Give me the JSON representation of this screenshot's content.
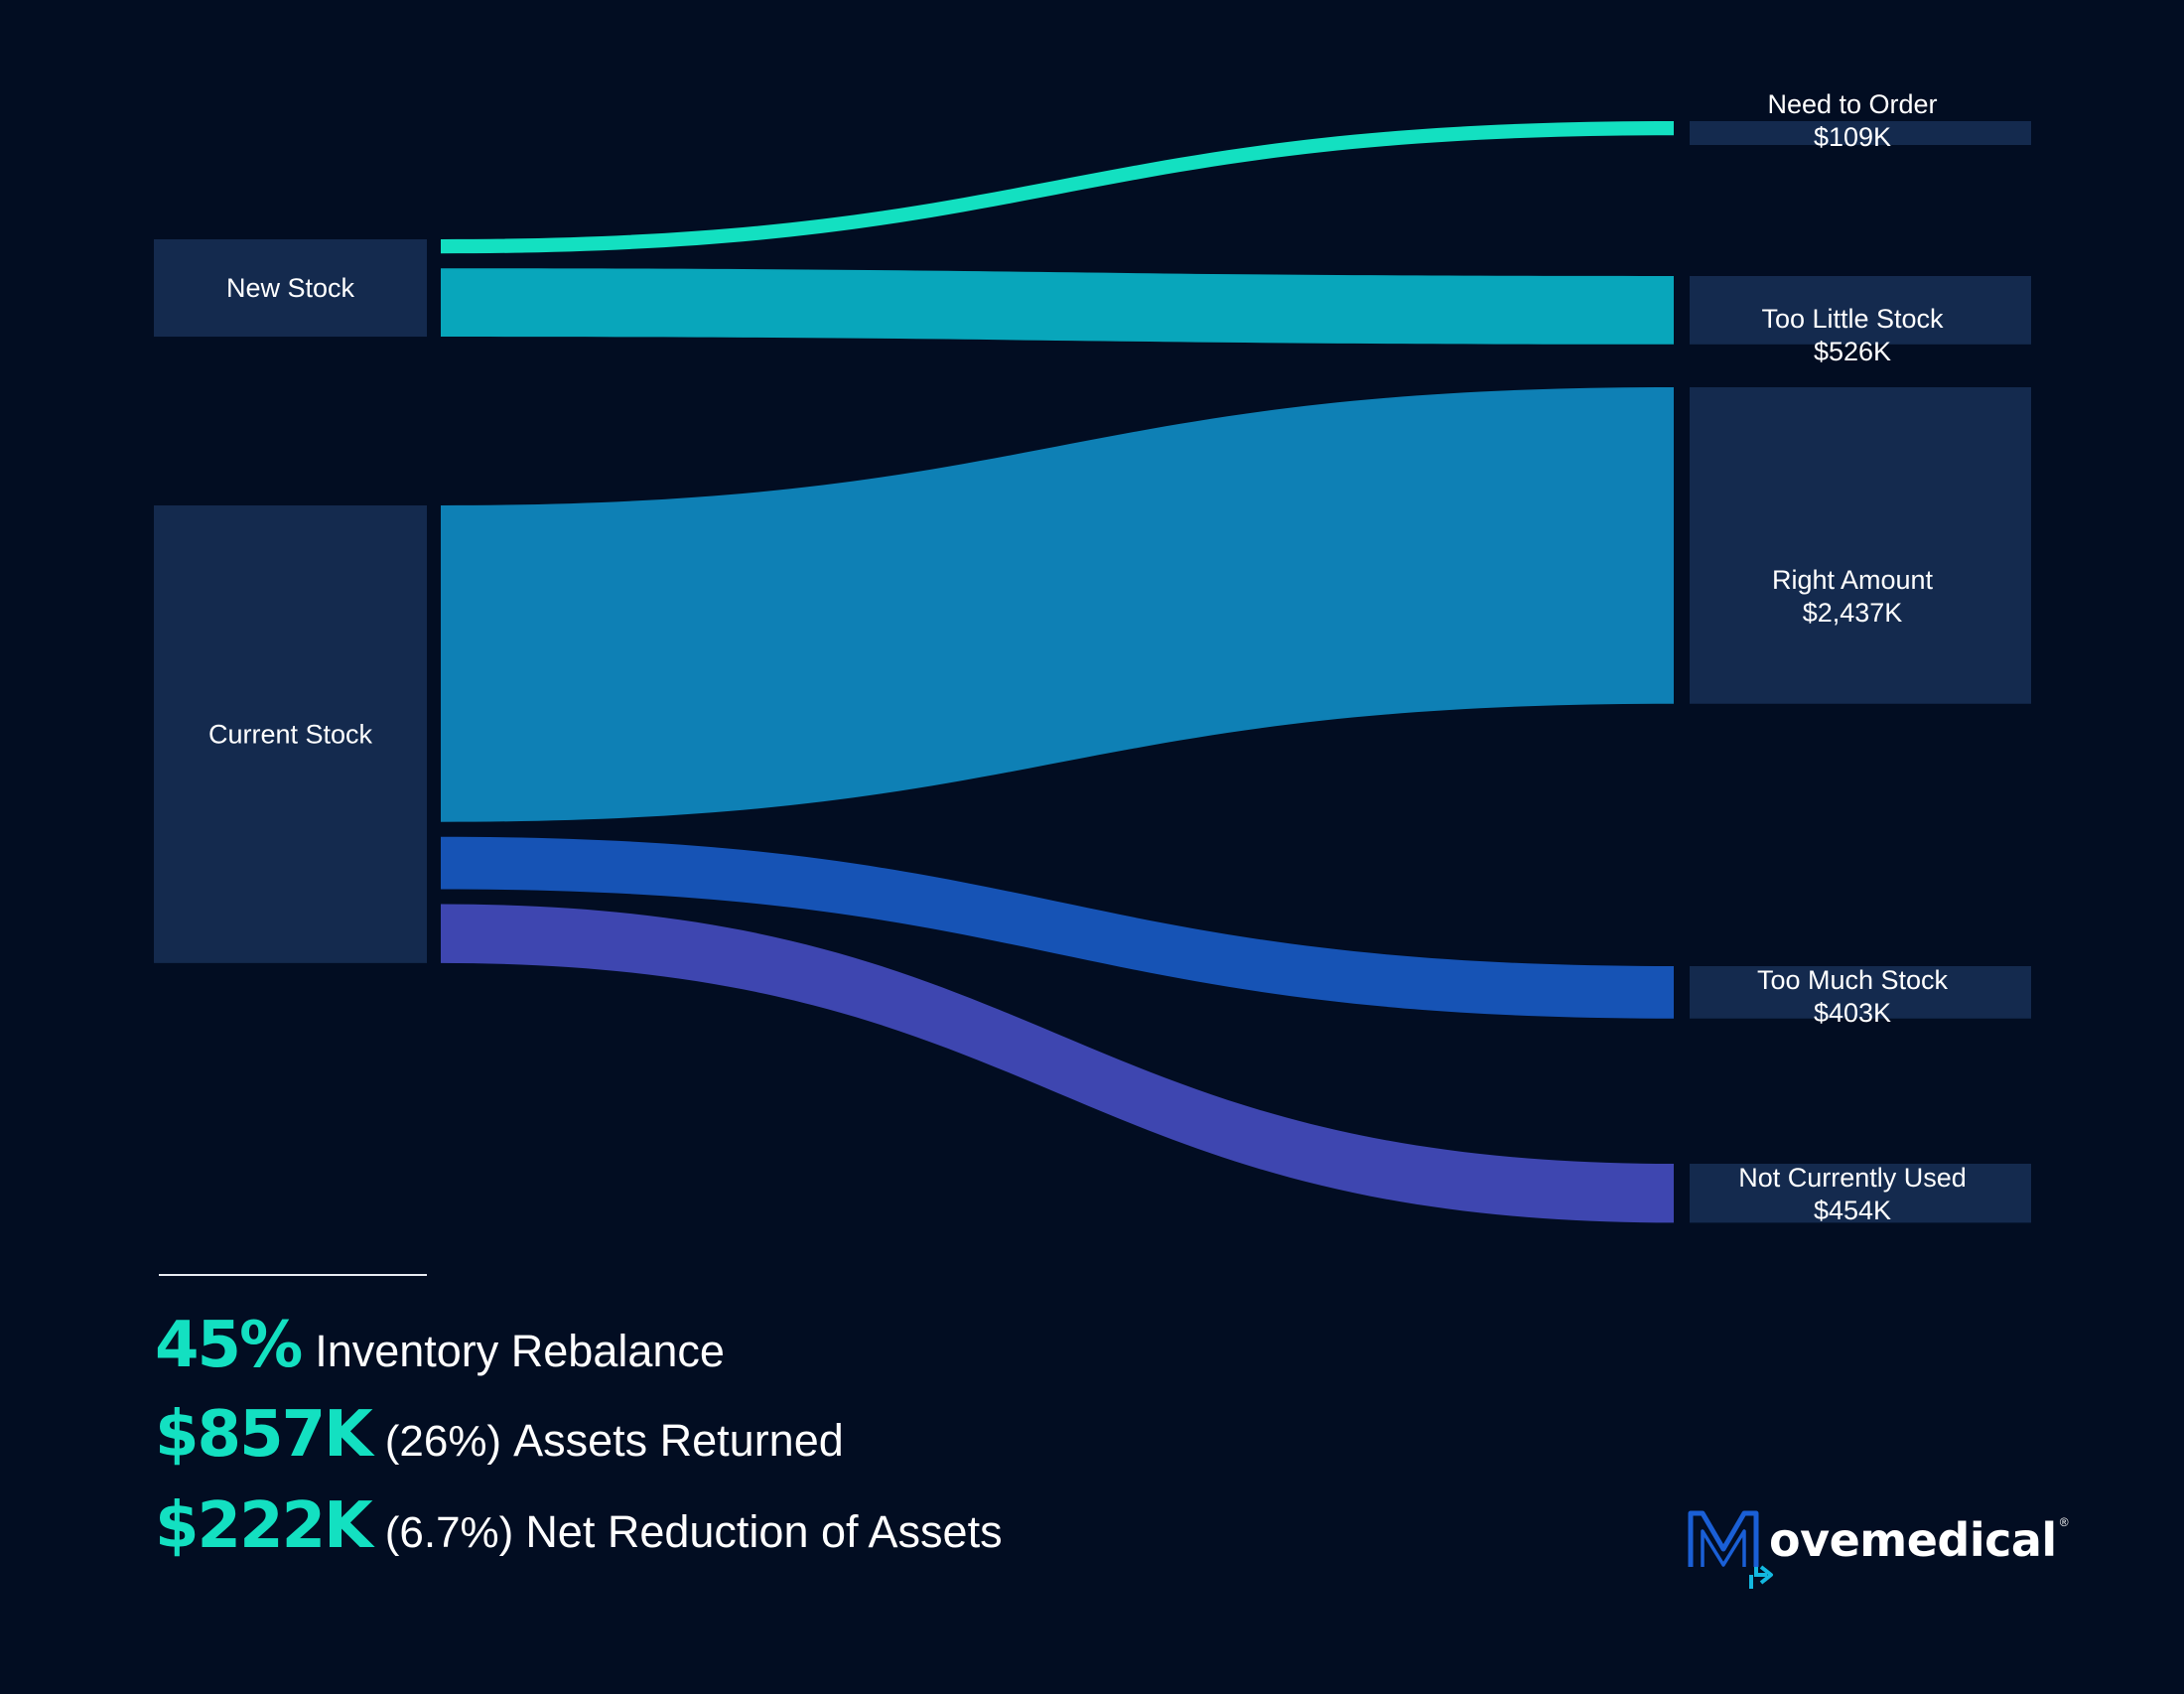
{
  "chart_data": {
    "type": "sankey",
    "units": "USD (thousands)",
    "sources": [
      {
        "id": "new",
        "label": "New Stock"
      },
      {
        "id": "current",
        "label": "Current Stock"
      }
    ],
    "targets": [
      {
        "id": "order",
        "label": "Need to Order",
        "value_label": "$109K",
        "value": 109
      },
      {
        "id": "little",
        "label": "Too Little Stock",
        "value_label": "$526K",
        "value": 526
      },
      {
        "id": "right",
        "label": "Right Amount",
        "value_label": "$2,437K",
        "value": 2437
      },
      {
        "id": "much",
        "label": "Too Much Stock",
        "value_label": "$403K",
        "value": 403
      },
      {
        "id": "unused",
        "label": "Not Currently Used",
        "value_label": "$454K",
        "value": 454
      }
    ],
    "links": [
      {
        "source": "new",
        "target": "order",
        "value": 109,
        "color": "#13e0c1"
      },
      {
        "source": "new",
        "target": "little",
        "value": 526,
        "color": "#08a6bb"
      },
      {
        "source": "current",
        "target": "right",
        "value": 2437,
        "color": "#0e80b5"
      },
      {
        "source": "current",
        "target": "much",
        "value": 403,
        "color": "#1653b5"
      },
      {
        "source": "current",
        "target": "unused",
        "value": 454,
        "color": "#3e46b0"
      }
    ],
    "node_color": "#142a4e",
    "background_color": "#020d22"
  },
  "stats": [
    {
      "value": "45%",
      "paren": "",
      "label": "Inventory Rebalance"
    },
    {
      "value": "$857K",
      "paren": "(26%)",
      "label": "Assets Returned"
    },
    {
      "value": "$222K",
      "paren": "(6.7%)",
      "label": "Net Reduction of Assets"
    }
  ],
  "logo": {
    "name": "Movemedical",
    "text": "ovemedical",
    "registered": "®",
    "mark_color": "#1a5fd6",
    "accent_color": "#13e0c1"
  },
  "accent_color": "#13e0c1"
}
